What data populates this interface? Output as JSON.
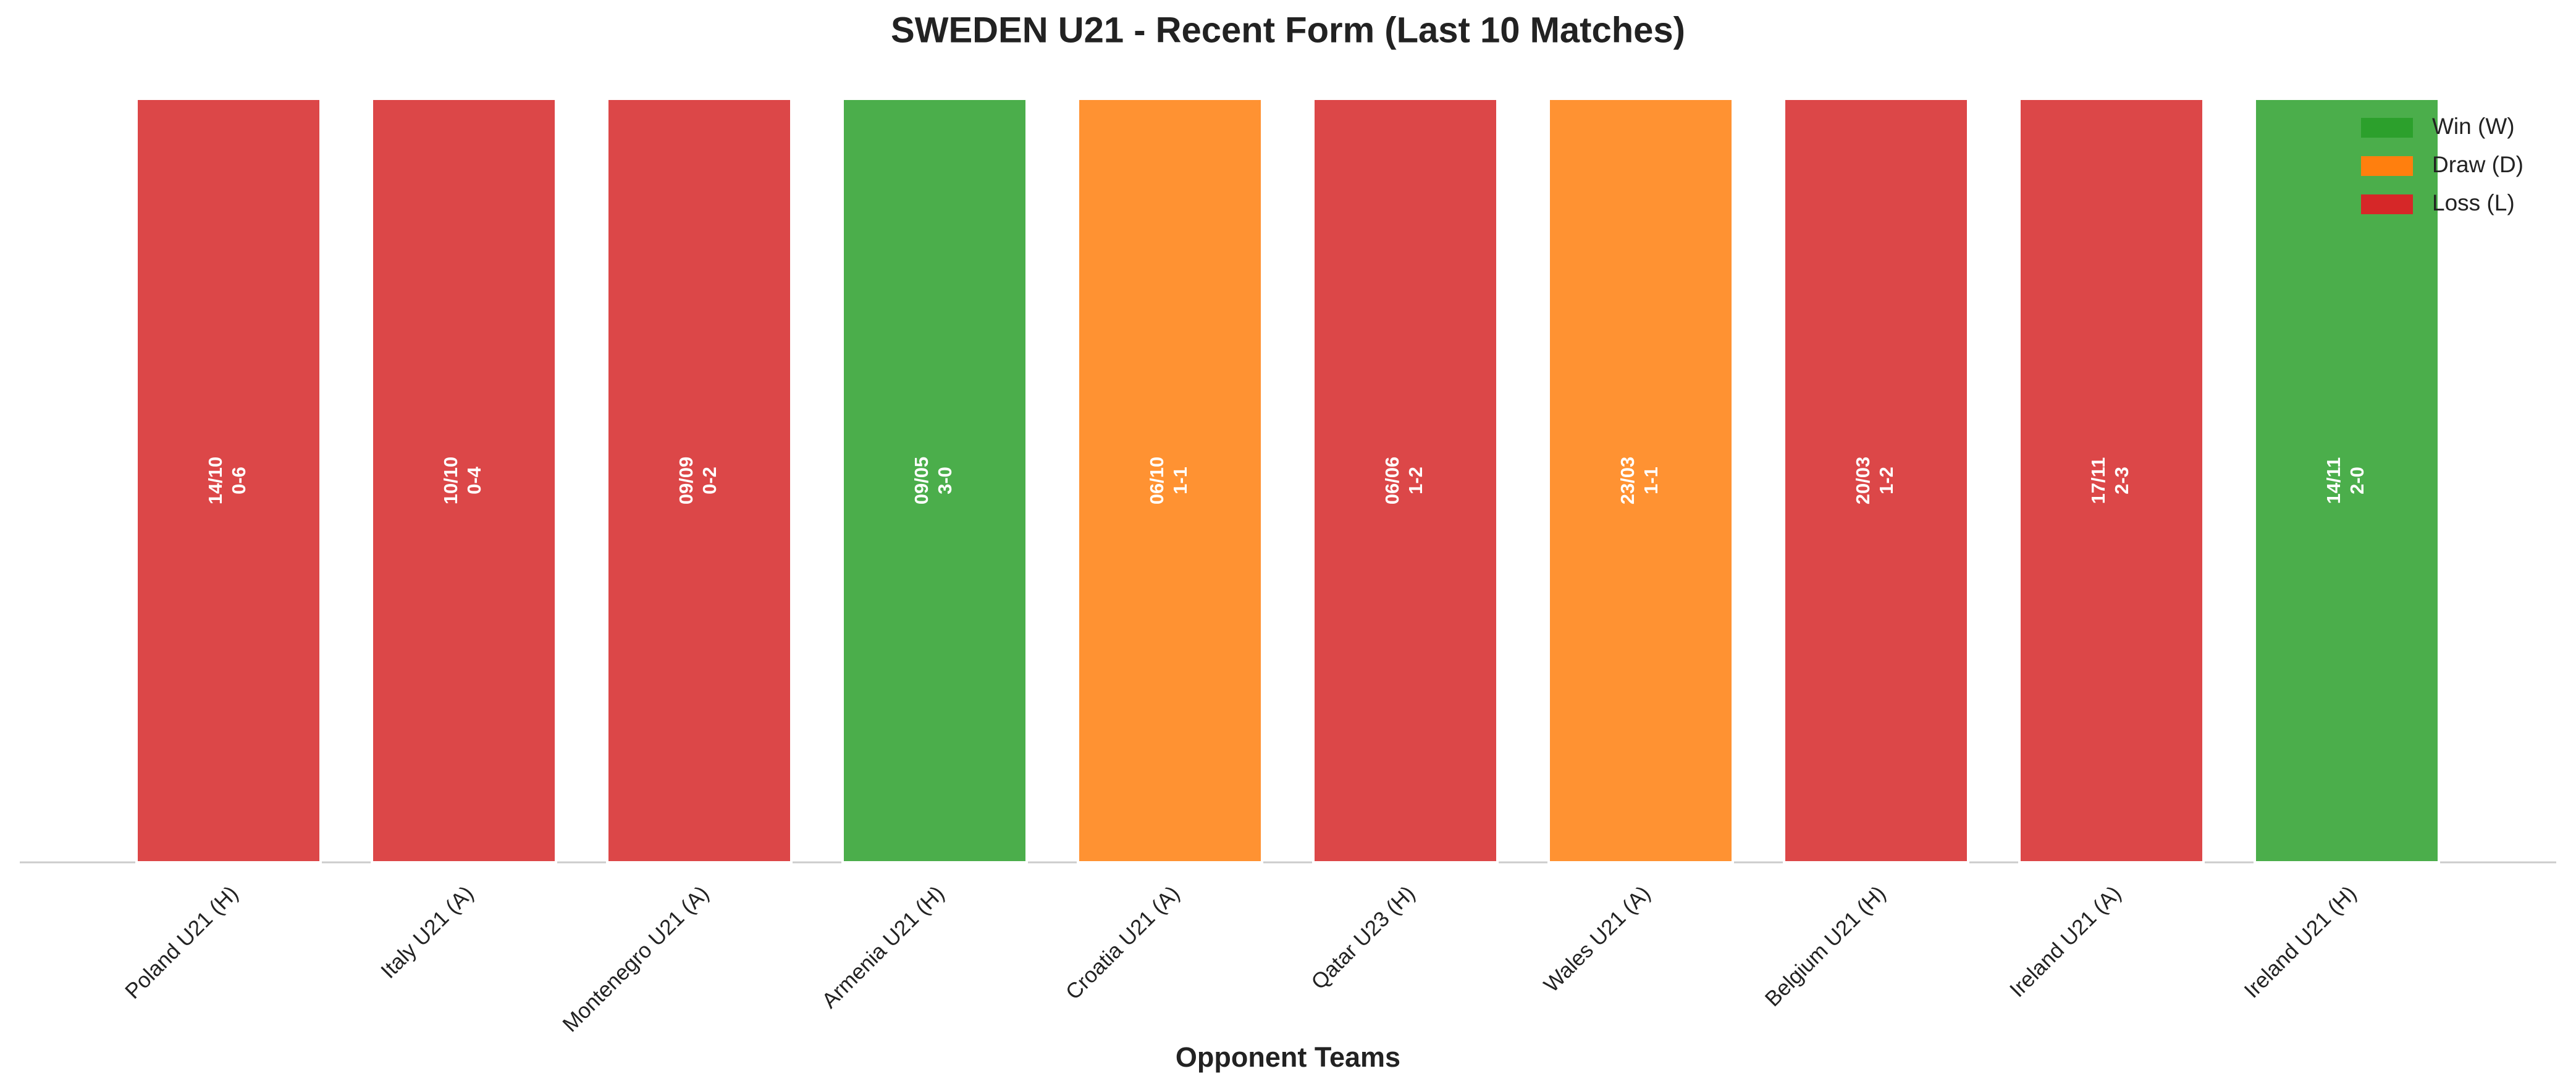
{
  "chart_data": {
    "type": "bar",
    "title": "SWEDEN U21 - Recent Form (Last 10 Matches)",
    "x_label": "Opponent Teams",
    "categories": [
      "Poland U21 (H)",
      "Italy U21 (A)",
      "Montenegro U21 (A)",
      "Armenia U21 (H)",
      "Croatia U21 (A)",
      "Qatar U23 (H)",
      "Wales U21 (A)",
      "Belgium U21 (H)",
      "Ireland U21 (A)",
      "Ireland U21 (H)"
    ],
    "values": [
      1,
      1,
      1,
      1,
      1,
      1,
      1,
      1,
      1,
      1
    ],
    "ylim": [
      0,
      1
    ],
    "dates": [
      "14/10",
      "10/10",
      "09/09",
      "09/05",
      "06/10",
      "06/06",
      "23/03",
      "20/03",
      "17/11",
      "14/11"
    ],
    "scores": [
      "0-6",
      "0-4",
      "0-2",
      "3-0",
      "1-1",
      "1-2",
      "1-1",
      "1-2",
      "2-3",
      "2-0"
    ],
    "colors": [
      "#d62728",
      "#d62728",
      "#d62728",
      "#2ca02c",
      "#ff7f0e",
      "#d62728",
      "#ff7f0e",
      "#d62728",
      "#d62728",
      "#2ca02c"
    ],
    "legend": [
      {
        "name": "Win (W)",
        "color": "#2ca02c"
      },
      {
        "name": "Draw (D)",
        "color": "#ff7f0e"
      },
      {
        "name": "Loss (L)",
        "color": "#d62728"
      }
    ],
    "legend_position": "upper right"
  }
}
